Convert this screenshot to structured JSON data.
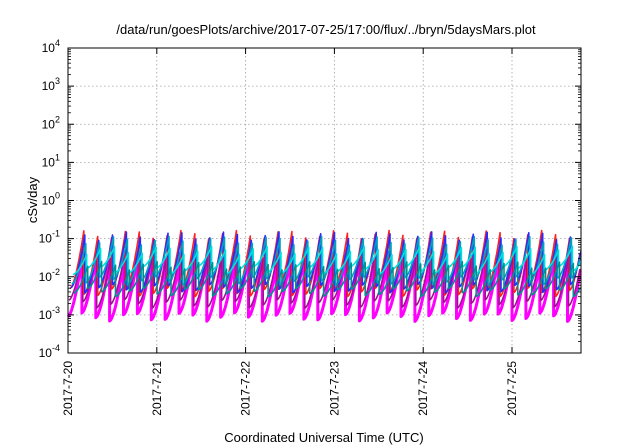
{
  "chart_data": {
    "type": "line",
    "title": "/data/run/goesPlots/archive/2017-07-25/17:00/flux/../bryn/5daysMars.plot",
    "xlabel": "Coordinated Universal Time (UTC)",
    "ylabel": "cSv/day",
    "yscale": "log",
    "ylim": [
      0.0001,
      10000
    ],
    "y_ticks": [
      {
        "base": "10",
        "exp": "-4",
        "value": 0.0001
      },
      {
        "base": "10",
        "exp": "-3",
        "value": 0.001
      },
      {
        "base": "10",
        "exp": "-2",
        "value": 0.01
      },
      {
        "base": "10",
        "exp": "-1",
        "value": 0.1
      },
      {
        "base": "10",
        "exp": "0",
        "value": 1
      },
      {
        "base": "10",
        "exp": "1",
        "value": 10
      },
      {
        "base": "10",
        "exp": "2",
        "value": 100
      },
      {
        "base": "10",
        "exp": "3",
        "value": 1000
      },
      {
        "base": "10",
        "exp": "4",
        "value": 10000
      }
    ],
    "x_ticks": [
      "2017-7-20",
      "2017-7-21",
      "2017-7-22",
      "2017-7-23",
      "2017-7-24",
      "2017-7-25"
    ],
    "xlim": [
      "2017-07-20 00:00",
      "2017-07-25 17:00"
    ],
    "grid": true,
    "oscillation": {
      "cycles_per_day": 6.4,
      "peak_value": 0.12,
      "trough_value": 0.001
    },
    "series": [
      {
        "color": "#ff00ff",
        "peak": 0.03,
        "trough": 0.0009
      },
      {
        "color": "#a01090",
        "peak": 0.04,
        "trough": 0.002
      },
      {
        "color": "#ff2020",
        "peak": 0.13,
        "trough": 0.004
      },
      {
        "color": "#2a2aff",
        "peak": 0.12,
        "trough": 0.005
      },
      {
        "color": "#00a0c0",
        "peak": 0.09,
        "trough": 0.008
      },
      {
        "color": "#00e0e0",
        "peak": 0.05,
        "trough": 0.015
      },
      {
        "color": "#009090",
        "peak": 0.02,
        "trough": 0.004
      }
    ]
  }
}
